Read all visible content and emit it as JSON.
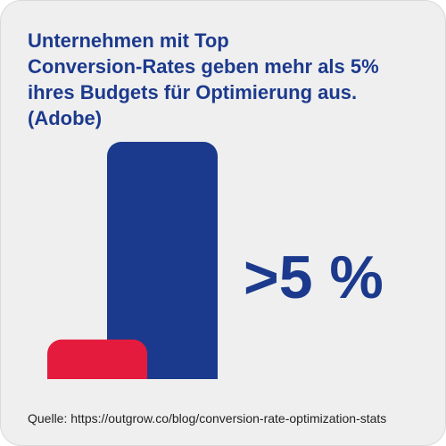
{
  "infographic": {
    "title_lines": [
      "Unternehmen mit Top",
      "Conversion-Rates geben mehr als 5%",
      "ihres Budgets für Optimierung aus.",
      "(Adobe)"
    ],
    "highlight_value": ">5 %",
    "source": "Quelle: https://outgrow.co/blog/conversion-rate-optimization-stats",
    "colors": {
      "background": "#efefef",
      "primary": "#1c3a8d",
      "accent": "#e51b3d"
    }
  },
  "chart_data": {
    "type": "bar",
    "title": "Unternehmen mit Top Conversion-Rates geben mehr als 5% ihres Budgets für Optimierung aus. (Adobe)",
    "xlabel": "",
    "ylabel": "",
    "grid": false,
    "legend": "none",
    "categories": [
      "",
      ""
    ],
    "series": [
      {
        "values": [
          1,
          6
        ]
      }
    ],
    "colors": [
      "#e51b3d",
      "#1c3a8d"
    ],
    "ylim": [
      0,
      6
    ],
    "value_labels": [
      "",
      ">5 %"
    ]
  }
}
